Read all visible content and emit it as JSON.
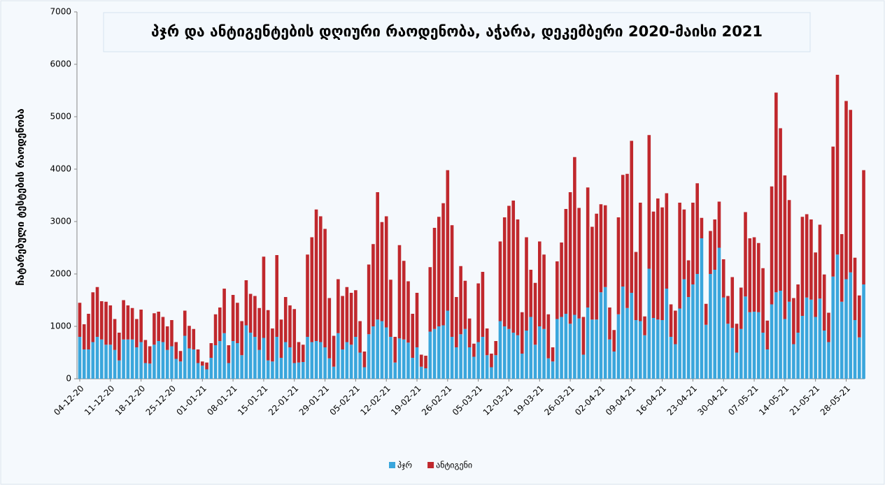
{
  "chart_data": {
    "type": "stacked_bar",
    "title": "პჯრ და ანტიგენტების დღიური რაოდენობა, აჭარა,  დეკემბერი 2020-მაისი 2021",
    "ylabel": "ჩატარებული ტესტების რაოდენობა",
    "ylim": [
      0,
      7000
    ],
    "yticks": [
      0,
      1000,
      2000,
      3000,
      4000,
      5000,
      6000,
      7000
    ],
    "legend": "bottom",
    "categories": [
      "04-12-20",
      null,
      null,
      null,
      null,
      null,
      null,
      "11-12-20",
      null,
      null,
      null,
      null,
      null,
      null,
      "18-12-20",
      null,
      null,
      null,
      null,
      null,
      null,
      "25-12-20",
      null,
      null,
      null,
      null,
      null,
      null,
      "01-01-21",
      null,
      null,
      null,
      null,
      null,
      null,
      "08-01-21",
      null,
      null,
      null,
      null,
      null,
      null,
      "15-01-21",
      null,
      null,
      null,
      null,
      null,
      null,
      "22-01-21",
      null,
      null,
      null,
      null,
      null,
      null,
      "29-01-21",
      null,
      null,
      null,
      null,
      null,
      null,
      "05-02-21",
      null,
      null,
      null,
      null,
      null,
      null,
      "12-02-21",
      null,
      null,
      null,
      null,
      null,
      null,
      "19-02-21",
      null,
      null,
      null,
      null,
      null,
      null,
      "26-02-21",
      null,
      null,
      null,
      null,
      null,
      null,
      "05-03-21",
      null,
      null,
      null,
      null,
      null,
      null,
      "12-03-21",
      null,
      null,
      null,
      null,
      null,
      null,
      "19-03-21",
      null,
      null,
      null,
      null,
      null,
      null,
      "26-03-21",
      null,
      null,
      null,
      null,
      null,
      null,
      "02-04-21",
      null,
      null,
      null,
      null,
      null,
      null,
      "09-04-21",
      null,
      null,
      null,
      null,
      null,
      null,
      "16-04-21",
      null,
      null,
      null,
      null,
      null,
      null,
      "23-04-21",
      null,
      null,
      null,
      null,
      null,
      null,
      "30-04-21",
      null,
      null,
      null,
      null,
      null,
      null,
      "07-05-21",
      null,
      null,
      null,
      null,
      null,
      null,
      "14-05-21",
      null,
      null,
      null,
      null,
      null,
      null,
      "21-05-21",
      null,
      null,
      null,
      null,
      null,
      null,
      "28-05-21",
      null,
      null,
      null,
      null
    ],
    "series": [
      {
        "name": "პჯრ",
        "color": "#3aa6dc",
        "values": [
          800,
          560,
          560,
          700,
          800,
          750,
          650,
          650,
          550,
          350,
          750,
          750,
          750,
          600,
          700,
          300,
          290,
          650,
          720,
          700,
          550,
          620,
          380,
          330,
          820,
          580,
          560,
          300,
          250,
          180,
          400,
          640,
          720,
          870,
          300,
          720,
          680,
          450,
          1020,
          880,
          800,
          550,
          780,
          350,
          330,
          800,
          400,
          700,
          600,
          300,
          310,
          320,
          800,
          700,
          720,
          700,
          600,
          390,
          230,
          870,
          560,
          700,
          650,
          800,
          500,
          220,
          850,
          1000,
          1130,
          1100,
          980,
          800,
          310,
          770,
          750,
          690,
          400,
          600,
          230,
          200,
          900,
          950,
          1000,
          1020,
          1300,
          800,
          600,
          850,
          950,
          600,
          420,
          700,
          800,
          450,
          220,
          450,
          1100,
          1000,
          950,
          880,
          830,
          480,
          920,
          1180,
          650,
          1000,
          950,
          390,
          330,
          1140,
          1180,
          1240,
          1050,
          1220,
          1150,
          460,
          1360,
          1130,
          1130,
          1650,
          1750,
          750,
          520,
          1230,
          1760,
          1350,
          1640,
          1120,
          1100,
          830,
          2100,
          1160,
          1130,
          1120,
          1720,
          800,
          660,
          1340,
          1900,
          1560,
          1800,
          2000,
          2680,
          1030,
          2000,
          2080,
          2500,
          1550,
          1050,
          970,
          500,
          950,
          1570,
          1270,
          1280,
          1270,
          880,
          560,
          1420,
          1650,
          1680,
          1140,
          1470,
          660,
          880,
          1200,
          1550,
          1510,
          1180,
          1530,
          920,
          700,
          1950,
          2370,
          1470,
          1900,
          2030,
          1120,
          790,
          1800
        ]
      },
      {
        "name": "ანტიგენი",
        "color": "#c0282d",
        "values": [
          650,
          480,
          680,
          950,
          950,
          730,
          820,
          750,
          590,
          530,
          750,
          650,
          600,
          540,
          620,
          440,
          330,
          600,
          560,
          480,
          450,
          500,
          320,
          200,
          480,
          430,
          390,
          260,
          80,
          130,
          280,
          590,
          640,
          850,
          340,
          880,
          770,
          650,
          860,
          740,
          780,
          800,
          1550,
          960,
          630,
          1560,
          730,
          860,
          800,
          1030,
          390,
          330,
          1570,
          2000,
          2510,
          2400,
          2260,
          1150,
          590,
          1030,
          1020,
          1050,
          990,
          890,
          600,
          300,
          1330,
          1570,
          2430,
          1890,
          2120,
          1090,
          490,
          1780,
          1500,
          1170,
          840,
          1040,
          230,
          240,
          1230,
          1930,
          2090,
          2330,
          2680,
          2130,
          960,
          1300,
          920,
          550,
          250,
          1120,
          1240,
          510,
          260,
          270,
          1520,
          2080,
          2350,
          2520,
          2210,
          790,
          1780,
          900,
          1180,
          1620,
          1420,
          840,
          270,
          1100,
          1420,
          2000,
          2510,
          3010,
          2110,
          720,
          2290,
          1770,
          2020,
          1680,
          1560,
          610,
          410,
          1850,
          2130,
          2560,
          2900,
          1300,
          2260,
          360,
          2550,
          2030,
          2310,
          2150,
          1820,
          620,
          640,
          2020,
          1330,
          700,
          1560,
          1730,
          390,
          400,
          820,
          960,
          880,
          730,
          530,
          970,
          550,
          790,
          1610,
          1410,
          1420,
          1320,
          1230,
          550,
          2250,
          3810,
          3100,
          2740,
          1940,
          880,
          920,
          1890,
          1590,
          1530,
          1230,
          1410,
          1070,
          560,
          2480,
          3430,
          1290,
          3400,
          3100,
          1190,
          800,
          2180
        ]
      }
    ]
  }
}
